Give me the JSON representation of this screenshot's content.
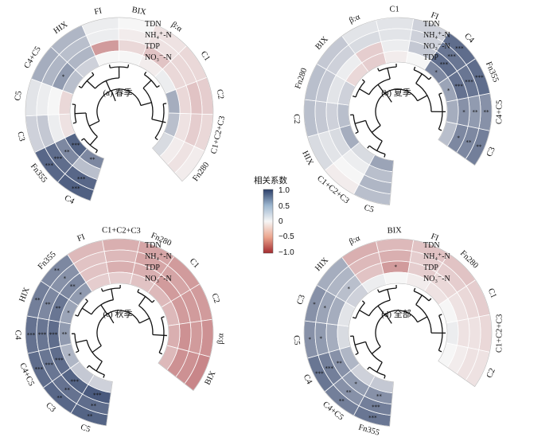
{
  "figure": {
    "colorbar": {
      "title": "相关系数",
      "ticks": [
        "1.0",
        "0.5",
        "0",
        "−0.5",
        "−1.0"
      ],
      "tick_values": [
        1.0,
        0.5,
        0,
        -0.5,
        -1.0
      ],
      "colors": {
        "neg": "#a32b2f",
        "zero": "#f6f6f6",
        "pos": "#2c3f69"
      }
    }
  },
  "chart_data": [
    {
      "type": "heatmap",
      "title": "(a) 春季",
      "rows": [
        "TDN",
        "NH₄⁺-N",
        "TDP",
        "NO₃⁻-N"
      ],
      "columns": [
        "C4",
        "Fn355",
        "C3",
        "C5",
        "C4+C5",
        "HIX",
        "FI",
        "BIX",
        "β:α",
        "C1",
        "C2",
        "C1+C2+C3",
        "Fn280"
      ],
      "values": [
        [
          0.82,
          0.78,
          0.2,
          0.1,
          0.4,
          0.35,
          0.05,
          0.0,
          -0.1,
          -0.15,
          -0.2,
          -0.15,
          -0.05
        ],
        [
          0.78,
          0.75,
          0.25,
          0.05,
          0.35,
          0.3,
          0.05,
          -0.05,
          -0.1,
          -0.15,
          -0.25,
          -0.2,
          -0.1
        ],
        [
          0.3,
          0.6,
          0.05,
          0.0,
          0.5,
          0.35,
          -0.45,
          -0.15,
          -0.25,
          -0.15,
          -0.15,
          -0.1,
          -0.05
        ],
        [
          0.6,
          0.8,
          -0.1,
          -0.15,
          0.3,
          0.2,
          0.0,
          0.0,
          -0.05,
          0.05,
          0.4,
          0.3,
          0.15
        ]
      ],
      "stars": [
        [
          "***",
          "***",
          "",
          "",
          "",
          "",
          "",
          "",
          "",
          "",
          "",
          "",
          ""
        ],
        [
          "***",
          "***",
          "",
          "",
          "",
          "",
          "",
          "",
          "",
          "",
          "",
          "",
          ""
        ],
        [
          "",
          "**",
          "",
          "",
          "*",
          "",
          "",
          "",
          "",
          "",
          "",
          "",
          ""
        ],
        [
          "**",
          "***",
          "",
          "",
          "",
          "",
          "",
          "",
          "",
          "",
          "",
          "",
          ""
        ]
      ]
    },
    {
      "type": "heatmap",
      "title": "(b) 夏季",
      "rows": [
        "TDN",
        "NH₄⁺-N",
        "NO₃⁻-N",
        "TDP"
      ],
      "columns": [
        "C5",
        "C1+C2+C3",
        "HIX",
        "C2",
        "Fn280",
        "BIX",
        "β:α",
        "C1",
        "FI",
        "C4",
        "Fn355",
        "C4+C5",
        "C3"
      ],
      "values": [
        [
          0.3,
          -0.05,
          0.15,
          0.3,
          0.3,
          0.25,
          0.1,
          0.1,
          0.2,
          0.75,
          0.75,
          0.55,
          0.65
        ],
        [
          0.35,
          0.0,
          0.1,
          0.25,
          0.25,
          0.2,
          0.15,
          0.1,
          0.2,
          0.7,
          0.7,
          0.5,
          0.6
        ],
        [
          0.3,
          0.05,
          0.15,
          0.2,
          0.1,
          0.05,
          -0.2,
          0.05,
          0.25,
          0.75,
          0.72,
          0.55,
          0.6
        ],
        [
          0.45,
          0.15,
          0.4,
          0.3,
          0.2,
          -0.15,
          -0.2,
          -0.05,
          0.0,
          0.6,
          0.45,
          0.4,
          0.3
        ]
      ],
      "stars": [
        [
          "",
          "",
          "",
          "",
          "",
          "",
          "",
          "",
          "",
          "***",
          "***",
          "**",
          "**"
        ],
        [
          "",
          "",
          "",
          "",
          "",
          "",
          "",
          "",
          "",
          "***",
          "***",
          "**",
          "**"
        ],
        [
          "",
          "",
          "",
          "",
          "",
          "",
          "",
          "",
          "",
          "***",
          "***",
          "*",
          "*"
        ],
        [
          "",
          "",
          "",
          "",
          "",
          "",
          "",
          "",
          "",
          "*",
          "*",
          "",
          ""
        ]
      ]
    },
    {
      "type": "heatmap",
      "title": "(c) 秋季",
      "rows": [
        "TDN",
        "NH₄⁺-N",
        "TDP",
        "NO₃⁻-N"
      ],
      "columns": [
        "C5",
        "C3",
        "C4+C5",
        "C4",
        "HIX",
        "Fn355",
        "FI",
        "C1+C2+C3",
        "Fn280",
        "C1",
        "C2",
        "β:α",
        "BIX"
      ],
      "values": [
        [
          0.8,
          0.78,
          0.75,
          0.72,
          0.65,
          0.6,
          -0.3,
          -0.35,
          -0.4,
          -0.45,
          -0.45,
          -0.5,
          -0.55
        ],
        [
          0.75,
          0.72,
          0.7,
          0.7,
          0.6,
          0.55,
          -0.25,
          -0.3,
          -0.4,
          -0.4,
          -0.45,
          -0.45,
          -0.5
        ],
        [
          0.85,
          0.8,
          0.75,
          0.75,
          0.7,
          0.6,
          -0.25,
          -0.35,
          -0.35,
          -0.45,
          -0.45,
          -0.5,
          -0.5
        ],
        [
          0.2,
          0.25,
          0.35,
          0.5,
          0.45,
          0.5,
          -0.2,
          -0.2,
          -0.25,
          -0.3,
          -0.3,
          -0.35,
          -0.3
        ]
      ],
      "stars": [
        [
          "**",
          "**",
          "***",
          "***",
          "**",
          "**",
          "",
          "",
          "",
          "",
          "",
          "",
          ""
        ],
        [
          "**",
          "**",
          "***",
          "***",
          "**",
          "*",
          "",
          "",
          "",
          "",
          "",
          "",
          ""
        ],
        [
          "***",
          "***",
          "***",
          "***",
          "**",
          "**",
          "",
          "",
          "",
          "",
          "",
          "",
          ""
        ],
        [
          "",
          "",
          "*",
          "**",
          "*",
          "*",
          "",
          "",
          "",
          "",
          "",
          "",
          ""
        ]
      ]
    },
    {
      "type": "heatmap",
      "title": "(d) 全部",
      "rows": [
        "TDN",
        "NH₄⁺-N",
        "TDP",
        "NO₃⁻-N"
      ],
      "columns": [
        "Fn355",
        "C4+C5",
        "C4",
        "C5",
        "C3",
        "HIX",
        "β:α",
        "BIX",
        "FI",
        "Fn280",
        "C1",
        "C1+C2+C3",
        "C2"
      ],
      "values": [
        [
          0.7,
          0.65,
          0.7,
          0.55,
          0.55,
          0.4,
          -0.35,
          -0.3,
          -0.25,
          -0.25,
          -0.2,
          -0.15,
          -0.1
        ],
        [
          0.65,
          0.55,
          0.65,
          0.5,
          0.45,
          0.35,
          -0.3,
          -0.35,
          -0.2,
          -0.2,
          -0.15,
          -0.1,
          -0.1
        ],
        [
          0.55,
          0.5,
          0.55,
          0.4,
          0.4,
          0.3,
          -0.25,
          -0.45,
          -0.2,
          -0.15,
          -0.1,
          -0.1,
          -0.05
        ],
        [
          0.25,
          0.2,
          0.35,
          0.15,
          0.1,
          0.2,
          0.05,
          0.0,
          -0.05,
          -0.1,
          0.0,
          0.05,
          0.0
        ]
      ],
      "stars": [
        [
          "***",
          "**",
          "***",
          "*",
          "*",
          "",
          "",
          "",
          "",
          "",
          "",
          "",
          ""
        ],
        [
          "***",
          "**",
          "***",
          "*",
          "*",
          "",
          "",
          "",
          "",
          "",
          "",
          "",
          ""
        ],
        [
          "**",
          "*",
          "**",
          "",
          "",
          "*",
          "",
          "*",
          "",
          "",
          "",
          "",
          ""
        ],
        [
          "",
          "",
          "",
          "",
          "",
          "",
          "",
          "",
          "",
          "",
          "",
          "",
          ""
        ]
      ]
    }
  ]
}
